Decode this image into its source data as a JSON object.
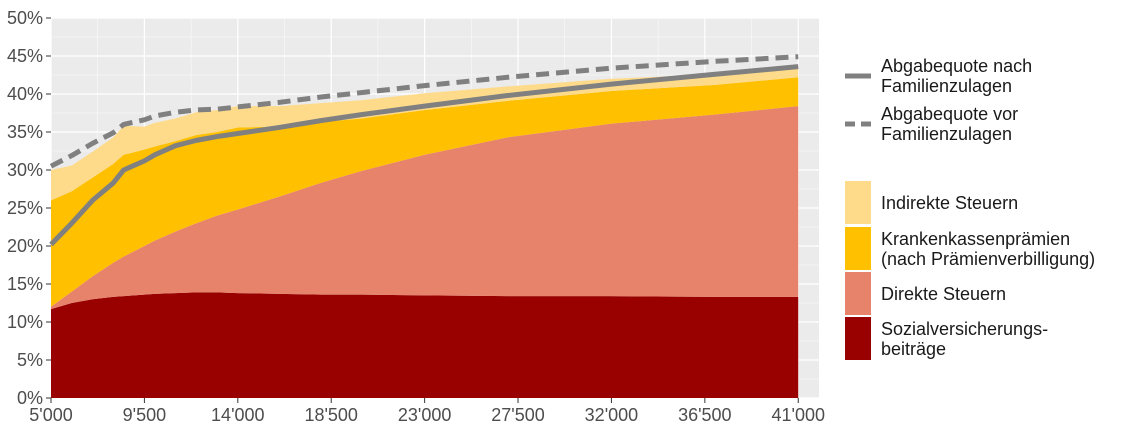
{
  "chart_data": {
    "type": "area",
    "title": "",
    "xlabel": "",
    "ylabel": "",
    "xlim": [
      5000,
      42000
    ],
    "ylim": [
      0,
      50
    ],
    "y_unit_suffix": "%",
    "x_ticks": [
      5000,
      9500,
      14000,
      18500,
      23000,
      27500,
      32000,
      36500,
      41000
    ],
    "x_tick_labels": [
      "5'000",
      "9'500",
      "14'000",
      "18'500",
      "23'000",
      "27'500",
      "32'000",
      "36'500",
      "41'000"
    ],
    "y_ticks": [
      0,
      5,
      10,
      15,
      20,
      25,
      30,
      35,
      40,
      45,
      50
    ],
    "y_tick_labels": [
      "0%",
      "5%",
      "10%",
      "15%",
      "20%",
      "25%",
      "30%",
      "35%",
      "40%",
      "45%",
      "50%"
    ],
    "grid": true,
    "legend_position": "right",
    "x": [
      5000,
      6000,
      7000,
      8000,
      8500,
      9500,
      10000,
      11000,
      12000,
      13000,
      14000,
      16000,
      18000,
      20000,
      23000,
      27000,
      32000,
      37000,
      41000
    ],
    "stacked_series": [
      {
        "name": "Sozialversicherungs-beiträge",
        "color": "#990000",
        "values": [
          11.7,
          12.5,
          13.0,
          13.3,
          13.4,
          13.6,
          13.7,
          13.8,
          13.9,
          13.9,
          13.8,
          13.7,
          13.6,
          13.6,
          13.5,
          13.4,
          13.4,
          13.3,
          13.3
        ]
      },
      {
        "name": "Direkte Steuern",
        "color": "#e8836b",
        "values": [
          0.3,
          1.5,
          3.0,
          4.5,
          5.2,
          6.4,
          7.0,
          8.1,
          9.1,
          10.1,
          11.0,
          12.8,
          14.7,
          16.3,
          18.5,
          20.9,
          22.7,
          24.0,
          25.1
        ]
      },
      {
        "name": "Krankenkassenprämien\n(nach Prämienverbilligung)",
        "color": "#ffc000",
        "values": [
          14.0,
          13.2,
          13.0,
          13.0,
          13.4,
          12.7,
          12.4,
          11.9,
          11.6,
          11.0,
          10.8,
          9.2,
          8.0,
          6.9,
          5.9,
          4.8,
          4.3,
          3.9,
          3.8
        ]
      },
      {
        "name": "Indirekte Steuern",
        "color": "#fedb8b",
        "values": [
          4.0,
          3.4,
          3.4,
          3.5,
          3.8,
          3.0,
          3.1,
          3.0,
          3.0,
          2.9,
          2.8,
          2.7,
          2.5,
          2.4,
          2.2,
          1.9,
          1.6,
          1.4,
          1.2
        ]
      }
    ],
    "line_series": [
      {
        "name": "Abgabequote nach Familienzulagen",
        "color": "#808080",
        "dash": "solid",
        "values": [
          20.2,
          23.0,
          26.0,
          28.3,
          30.0,
          31.2,
          32.0,
          33.2,
          33.9,
          34.4,
          34.8,
          35.6,
          36.5,
          37.3,
          38.4,
          39.8,
          41.3,
          42.6,
          43.6
        ]
      },
      {
        "name": "Abgabequote vor Familienzulagen",
        "color": "#808080",
        "dash": "dashed",
        "values": [
          30.5,
          31.9,
          33.5,
          34.9,
          36.0,
          36.6,
          37.1,
          37.6,
          37.9,
          38.0,
          38.3,
          38.9,
          39.6,
          40.2,
          41.1,
          42.2,
          43.4,
          44.3,
          44.9
        ]
      }
    ],
    "legend_lines": [
      {
        "label": "Abgabequote nach\nFamilienzulagen",
        "dash": "solid"
      },
      {
        "label": "Abgabequote vor\nFamilienzulagen",
        "dash": "dashed"
      }
    ],
    "legend_fills": [
      {
        "label": "Indirekte Steuern",
        "color": "#fedb8b"
      },
      {
        "label": "Krankenkassenprämien\n(nach Prämienverbilligung)",
        "color": "#ffc000"
      },
      {
        "label": "Direkte Steuern",
        "color": "#e8836b"
      },
      {
        "label": "Sozialversicherungs-\nbeiträge",
        "color": "#990000"
      }
    ],
    "panel_background": "#ebebeb",
    "grid_color": "#ffffff"
  }
}
